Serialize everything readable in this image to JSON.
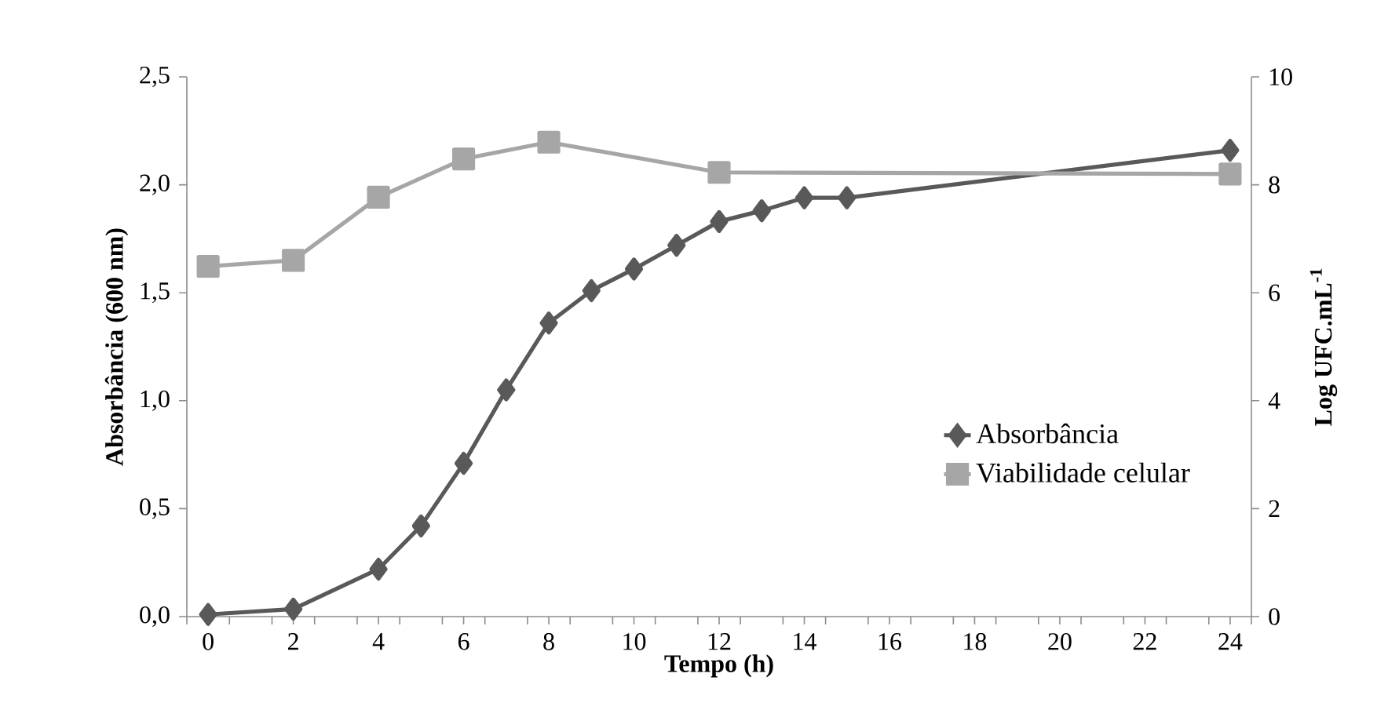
{
  "chart_data": {
    "type": "line",
    "xlabel": "Tempo (h)",
    "ylabel": "Absorbância (600 nm)",
    "y2label": "Log UFC.mL$^{-1}$",
    "xlim": [
      -0.5,
      24.5
    ],
    "xticks": [
      {
        "value": -0.5,
        "label": null
      },
      0,
      {
        "value": 0.5,
        "label": null
      },
      {
        "value": 1.5,
        "label": null
      },
      2,
      {
        "value": 2.5,
        "label": null
      },
      {
        "value": 3.5,
        "label": null
      },
      4,
      {
        "value": 4.5,
        "label": null
      },
      {
        "value": 5.5,
        "label": null
      },
      6,
      {
        "value": 6.5,
        "label": null
      },
      {
        "value": 7.5,
        "label": null
      },
      8,
      {
        "value": 8.5,
        "label": null
      },
      {
        "value": 9.5,
        "label": null
      },
      10,
      {
        "value": 10.5,
        "label": null
      },
      {
        "value": 11.5,
        "label": null
      },
      12,
      {
        "value": 12.5,
        "label": null
      },
      {
        "value": 13.5,
        "label": null
      },
      14,
      {
        "value": 14.5,
        "label": null
      },
      {
        "value": 15.5,
        "label": null
      },
      16,
      {
        "value": 16.5,
        "label": null
      },
      {
        "value": 17.5,
        "label": null
      },
      18,
      {
        "value": 18.5,
        "label": null
      },
      {
        "value": 19.5,
        "label": null
      },
      20,
      {
        "value": 20.5,
        "label": null
      },
      {
        "value": 21.5,
        "label": null
      },
      22,
      {
        "value": 22.5,
        "label": null
      },
      {
        "value": 23.5,
        "label": null
      },
      24,
      {
        "value": 24.5,
        "label": null
      }
    ],
    "ylim": [
      0,
      2.5
    ],
    "yticks": [
      {
        "value": 0,
        "label": "0,0"
      },
      {
        "value": 0.5,
        "label": "0,5"
      },
      {
        "value": 1,
        "label": "1,0"
      },
      {
        "value": 1.5,
        "label": "1,5"
      },
      {
        "value": 2,
        "label": "2,0"
      },
      {
        "value": 2.5,
        "label": "2,5"
      }
    ],
    "y2lim": [
      0,
      10
    ],
    "y2ticks": [
      0,
      2,
      4,
      6,
      8,
      10
    ],
    "grid": false,
    "legend": "right",
    "line_style": "solid",
    "series": [
      {
        "name": "Absorbância",
        "color": "#595959",
        "marker": "diamond",
        "x": [
          0,
          2,
          4,
          5,
          6,
          7,
          8,
          9,
          10,
          11,
          12,
          13,
          14,
          15,
          24
        ],
        "values": [
          0.01,
          0.035,
          0.22,
          0.42,
          0.71,
          1.05,
          1.36,
          1.51,
          1.61,
          1.72,
          1.83,
          1.88,
          1.94,
          1.94,
          2.16
        ]
      },
      {
        "name": "Viabilidade celular",
        "color": "#a6a6a6",
        "marker": "square",
        "axis": "y2",
        "x": [
          0,
          2,
          4,
          6,
          8,
          12,
          24
        ],
        "values": [
          6.49,
          6.6,
          7.77,
          8.48,
          8.79,
          8.23,
          8.2
        ]
      }
    ]
  }
}
